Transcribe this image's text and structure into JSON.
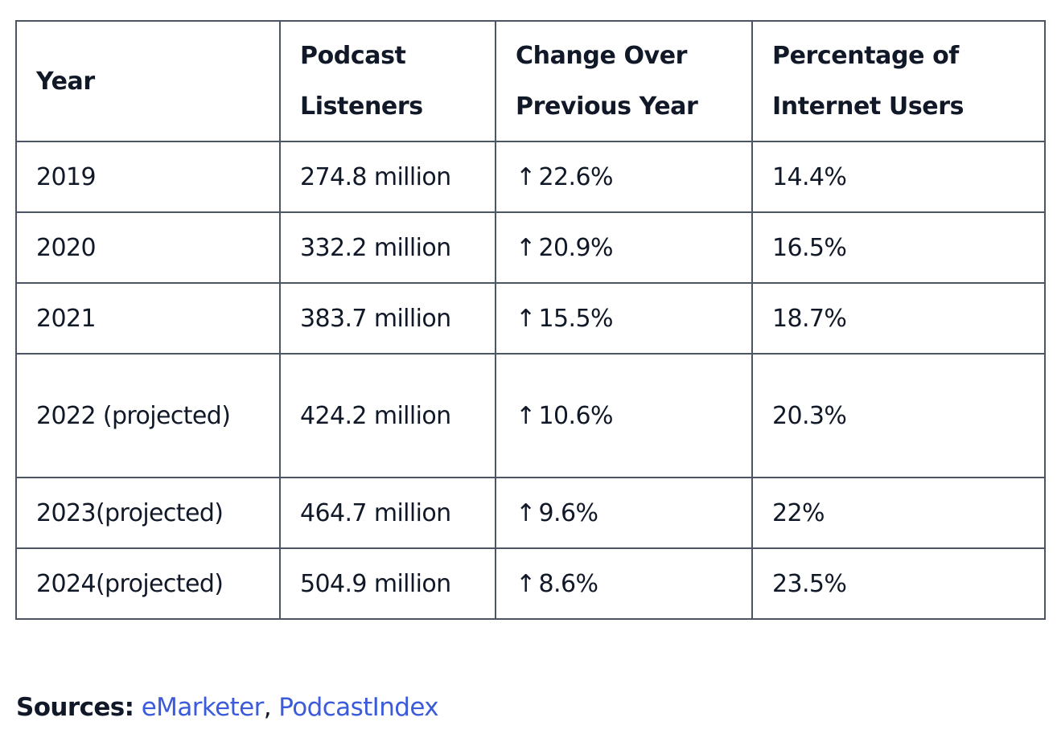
{
  "table": {
    "headers": [
      "Year",
      "Podcast Listeners",
      "Change Over Previous Year",
      "Percentage of Internet Users"
    ],
    "rows": [
      {
        "year": "2019",
        "listeners": "274.8 million",
        "arrow": "↑",
        "change": "22.6%",
        "pct": "14.4%"
      },
      {
        "year": "2020",
        "listeners": "332.2 million",
        "arrow": "↑",
        "change": "20.9%",
        "pct": "16.5%"
      },
      {
        "year": "2021",
        "listeners": "383.7 million",
        "arrow": "↑",
        "change": "15.5%",
        "pct": "18.7%"
      },
      {
        "year": "2022 (projected)",
        "listeners": "424.2 million",
        "arrow": "↑",
        "change": "10.6%",
        "pct": "20.3%"
      },
      {
        "year": "2023(projected)",
        "listeners": "464.7 million",
        "arrow": "↑",
        "change": "9.6%",
        "pct": "22%"
      },
      {
        "year": "2024(projected)",
        "listeners": "504.9 million",
        "arrow": "↑",
        "change": "8.6%",
        "pct": "23.5%"
      }
    ]
  },
  "sources": {
    "label": "Sources:",
    "separator": ",",
    "links": [
      "eMarketer",
      "PodcastIndex"
    ]
  },
  "colors": {
    "text": "#111827",
    "border": "#4b5563",
    "link": "#3b5bdb"
  },
  "icons": {
    "change_arrow": "arrow-up-icon"
  }
}
